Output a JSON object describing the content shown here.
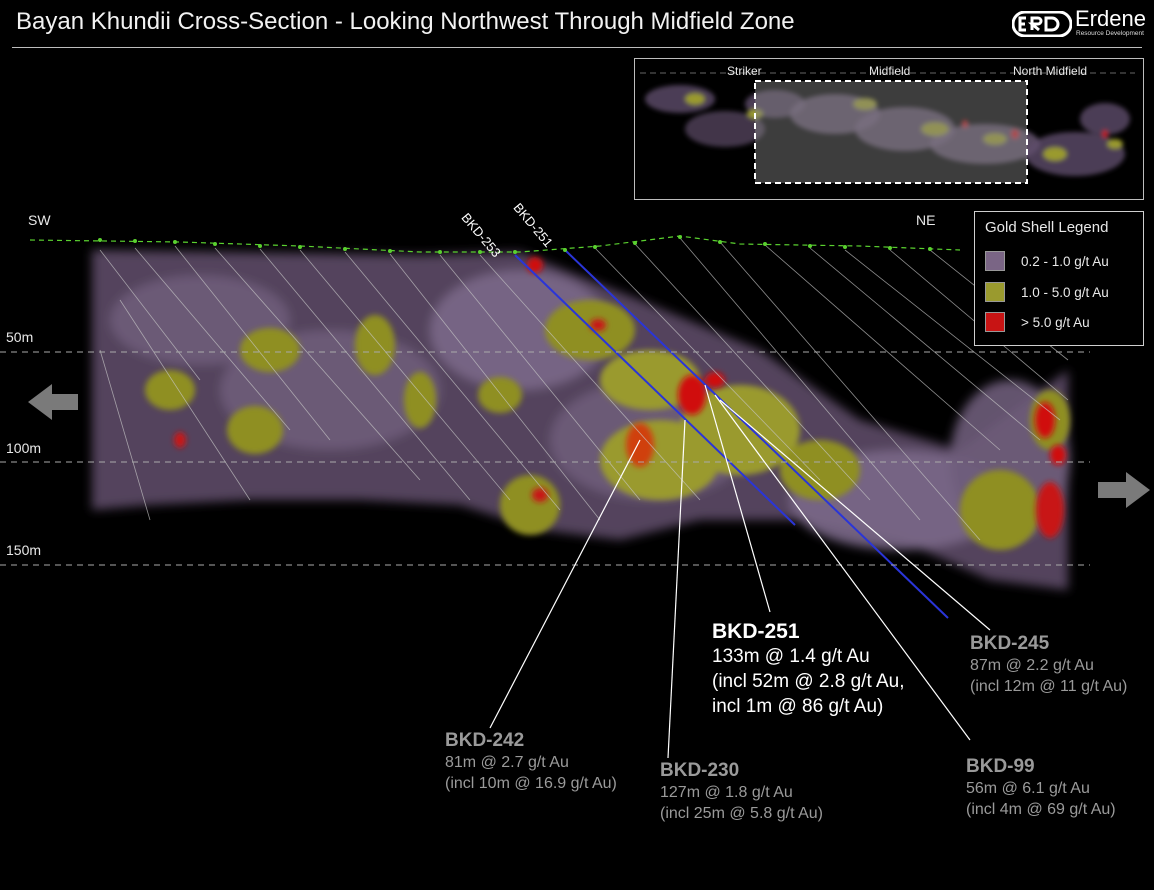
{
  "title": "Bayan Khundii Cross-Section - Looking Northwest Through Midfield Zone",
  "logo": {
    "name": "Erdene",
    "sub": "Resource Development",
    "mark": "ERD"
  },
  "directions": {
    "left": "SW",
    "right": "NE"
  },
  "depths": [
    "50m",
    "100m",
    "150m"
  ],
  "legend": {
    "title": "Gold Shell Legend",
    "items": [
      {
        "label": "0.2 - 1.0 g/t Au",
        "color": "#7a6585"
      },
      {
        "label": "1.0 - 5.0 g/t Au",
        "color": "#9a9a2e"
      },
      {
        "label": "> 5.0 g/t Au",
        "color": "#c81414"
      }
    ]
  },
  "inset": {
    "labels": [
      "Striker",
      "Midfield",
      "North Midfield"
    ]
  },
  "hole_labels": [
    "BKD-253",
    "BKD-251"
  ],
  "callouts": {
    "bkd251": {
      "hole": "BKD-251",
      "lines": [
        "133m @ 1.4 g/t Au",
        "(incl 52m @ 2.8 g/t Au,",
        "incl 1m @ 86 g/t Au)"
      ]
    },
    "bkd245": {
      "hole": "BKD-245",
      "lines": [
        "87m @ 2.2 g/t Au",
        "(incl 12m @ 11 g/t Au)"
      ]
    },
    "bkd242": {
      "hole": "BKD-242",
      "lines": [
        "81m @ 2.7 g/t Au",
        "(incl 10m @ 16.9 g/t Au)"
      ]
    },
    "bkd230": {
      "hole": "BKD-230",
      "lines": [
        "127m @ 1.8 g/t Au",
        "(incl 25m @ 5.8 g/t Au)"
      ]
    },
    "bkd99": {
      "hole": "BKD-99",
      "lines": [
        "56m @ 6.1 g/t Au",
        "(incl 4m @ 69 g/t Au)"
      ]
    }
  }
}
